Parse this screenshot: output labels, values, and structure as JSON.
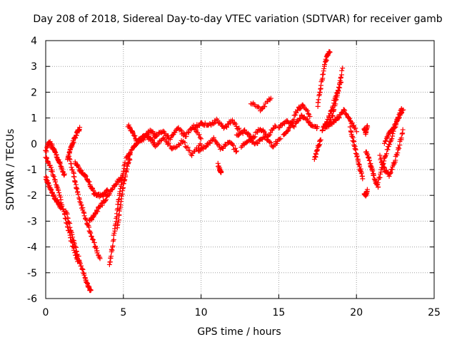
{
  "chart_data": {
    "type": "scatter",
    "title": "Day 208 of 2018, Sidereal Day-to-day VTEC variation (SDTVAR) for receiver gamb",
    "xlabel": "GPS time / hours",
    "ylabel": "SDTVAR / TECUs",
    "xlim": [
      0,
      25
    ],
    "ylim": [
      -6,
      4
    ],
    "xticks": [
      0,
      5,
      10,
      15,
      20,
      25
    ],
    "xtick_labels": [
      "0",
      "5",
      "10",
      "15",
      "20",
      "25"
    ],
    "yticks": [
      -6,
      -5,
      -4,
      -3,
      -2,
      -1,
      0,
      1,
      2,
      3,
      4
    ],
    "ytick_labels": [
      "-6",
      "-5",
      "-4",
      "-3",
      "-2",
      "-1",
      "0",
      "1",
      "2",
      "3",
      "4"
    ],
    "grid": true,
    "marker": "+",
    "series": [
      {
        "name": "SDTVAR",
        "color": "#ff0000",
        "tracks": [
          {
            "x": [
              0.0,
              0.2,
              0.4,
              0.6,
              0.8,
              1.0,
              1.2
            ],
            "y": [
              -0.3,
              0.1,
              -0.1,
              -0.3,
              -0.6,
              -0.9,
              -1.2
            ]
          },
          {
            "x": [
              0.0,
              0.2,
              0.4,
              0.6,
              0.8,
              1.0
            ],
            "y": [
              -1.3,
              -1.6,
              -1.9,
              -2.1,
              -2.3,
              -2.5
            ]
          },
          {
            "x": [
              0.0,
              0.3,
              0.6,
              0.9,
              1.2,
              1.5,
              1.8,
              2.1
            ],
            "y": [
              -0.5,
              -0.9,
              -1.4,
              -2.0,
              -2.7,
              -3.4,
              -4.1,
              -4.6
            ]
          },
          {
            "x": [
              1.3,
              1.6,
              1.9,
              2.2,
              2.5,
              2.7,
              2.9
            ],
            "y": [
              -2.6,
              -3.3,
              -4.0,
              -4.6,
              -5.1,
              -5.5,
              -5.7
            ]
          },
          {
            "x": [
              1.4,
              1.6,
              1.8,
              2.0,
              2.2
            ],
            "y": [
              -0.6,
              -0.2,
              0.1,
              0.4,
              0.6
            ]
          },
          {
            "x": [
              1.5,
              1.8,
              2.0,
              2.3,
              2.6,
              2.9,
              3.2,
              3.5
            ],
            "y": [
              -0.5,
              -1.2,
              -1.8,
              -2.4,
              -3.0,
              -3.5,
              -4.0,
              -4.5
            ]
          },
          {
            "x": [
              1.9,
              2.2,
              2.5,
              2.8,
              3.1,
              3.4,
              3.7,
              4.0
            ],
            "y": [
              -0.7,
              -1.0,
              -1.2,
              -1.5,
              -1.9,
              -2.0,
              -2.0,
              -1.8
            ]
          },
          {
            "x": [
              2.8,
              3.1,
              3.4,
              3.8,
              4.2,
              4.6,
              4.9
            ],
            "y": [
              -3.0,
              -2.8,
              -2.5,
              -2.2,
              -1.8,
              -1.5,
              -1.3
            ]
          },
          {
            "x": [
              4.1,
              4.3,
              4.5,
              4.7,
              4.9,
              5.1
            ],
            "y": [
              -4.7,
              -4.0,
              -3.1,
              -2.2,
              -1.4,
              -0.7
            ]
          },
          {
            "x": [
              4.6,
              4.8,
              5.0,
              5.2,
              5.4
            ],
            "y": [
              -3.3,
              -2.4,
              -1.6,
              -1.0,
              -0.6
            ]
          },
          {
            "x": [
              5.2,
              5.5,
              5.8,
              6.1,
              6.4,
              6.7,
              7.0
            ],
            "y": [
              -0.6,
              -0.3,
              0.0,
              0.2,
              0.3,
              0.2,
              0.0
            ]
          },
          {
            "x": [
              5.3,
              5.6,
              5.9,
              6.3,
              6.7,
              7.1
            ],
            "y": [
              0.7,
              0.4,
              0.1,
              0.2,
              0.5,
              0.3
            ]
          },
          {
            "x": [
              7.0,
              7.5,
              8.0,
              8.5,
              9.0,
              9.5,
              10.0
            ],
            "y": [
              0.3,
              0.5,
              0.2,
              0.6,
              0.3,
              0.7,
              0.2
            ]
          },
          {
            "x": [
              7.0,
              7.6,
              8.2,
              8.8,
              9.4,
              10.0
            ],
            "y": [
              -0.1,
              0.2,
              -0.2,
              0.1,
              -0.4,
              0.0
            ]
          },
          {
            "x": [
              9.5,
              10.0,
              10.5,
              11.0,
              11.5,
              12.0,
              12.5
            ],
            "y": [
              0.6,
              0.8,
              0.7,
              0.9,
              0.6,
              0.9,
              0.5
            ]
          },
          {
            "x": [
              9.8,
              10.3,
              10.8,
              11.3,
              11.8,
              12.3
            ],
            "y": [
              -0.3,
              -0.1,
              0.2,
              -0.2,
              0.1,
              -0.3
            ]
          },
          {
            "x": [
              11.1,
              11.2,
              11.3
            ],
            "y": [
              -0.8,
              -1.0,
              -1.1
            ]
          },
          {
            "x": [
              12.3,
              12.8,
              13.3,
              13.8,
              14.3,
              14.8
            ],
            "y": [
              0.3,
              0.5,
              0.2,
              0.6,
              0.3,
              0.7
            ]
          },
          {
            "x": [
              12.6,
              13.1,
              13.6,
              14.1,
              14.6,
              15.1
            ],
            "y": [
              -0.1,
              0.1,
              0.0,
              0.3,
              -0.1,
              0.2
            ]
          },
          {
            "x": [
              13.2,
              13.9,
              14.5
            ],
            "y": [
              1.6,
              1.3,
              1.8
            ]
          },
          {
            "x": [
              15.0,
              15.5,
              16.0,
              16.5,
              17.0,
              17.5
            ],
            "y": [
              0.6,
              0.9,
              0.7,
              1.1,
              0.8,
              0.6
            ]
          },
          {
            "x": [
              15.3,
              15.7,
              16.1,
              16.5,
              17.0
            ],
            "y": [
              0.3,
              0.6,
              1.2,
              1.5,
              1.1
            ]
          },
          {
            "x": [
              17.3,
              17.5,
              17.7
            ],
            "y": [
              -0.6,
              -0.2,
              0.2
            ]
          },
          {
            "x": [
              17.5,
              17.7,
              17.9,
              18.1,
              18.3
            ],
            "y": [
              1.5,
              2.2,
              2.9,
              3.4,
              3.6
            ]
          },
          {
            "x": [
              17.8,
              18.1,
              18.4,
              18.7,
              19.0
            ],
            "y": [
              0.5,
              0.9,
              1.3,
              1.9,
              2.4
            ]
          },
          {
            "x": [
              18.2,
              18.5,
              18.8,
              19.1
            ],
            "y": [
              0.7,
              1.2,
              2.0,
              2.9
            ]
          },
          {
            "x": [
              18.0,
              18.4,
              18.8,
              19.2,
              19.6,
              20.0
            ],
            "y": [
              0.6,
              0.8,
              1.0,
              1.3,
              0.9,
              0.5
            ]
          },
          {
            "x": [
              19.6,
              19.8,
              20.0,
              20.2,
              20.4
            ],
            "y": [
              0.6,
              0.1,
              -0.4,
              -0.9,
              -1.3
            ]
          },
          {
            "x": [
              20.5,
              20.6,
              20.7
            ],
            "y": [
              0.6,
              0.4,
              0.7
            ]
          },
          {
            "x": [
              20.5,
              20.6,
              20.7
            ],
            "y": [
              -1.9,
              -2.0,
              -1.8
            ]
          },
          {
            "x": [
              20.6,
              20.8,
              21.0,
              21.2,
              21.4
            ],
            "y": [
              -0.3,
              -0.6,
              -1.0,
              -1.4,
              -1.7
            ]
          },
          {
            "x": [
              21.4,
              21.7,
              22.0,
              22.3,
              22.6,
              22.9
            ],
            "y": [
              -1.5,
              -0.8,
              -0.2,
              0.3,
              0.9,
              1.4
            ]
          },
          {
            "x": [
              21.5,
              21.8,
              22.1,
              22.4,
              22.7,
              23.0
            ],
            "y": [
              -0.5,
              -1.0,
              -1.2,
              -0.8,
              -0.2,
              0.5
            ]
          },
          {
            "x": [
              21.8,
              22.1,
              22.4,
              22.7,
              23.0
            ],
            "y": [
              0.0,
              0.4,
              0.6,
              1.0,
              1.3
            ]
          }
        ]
      }
    ]
  }
}
